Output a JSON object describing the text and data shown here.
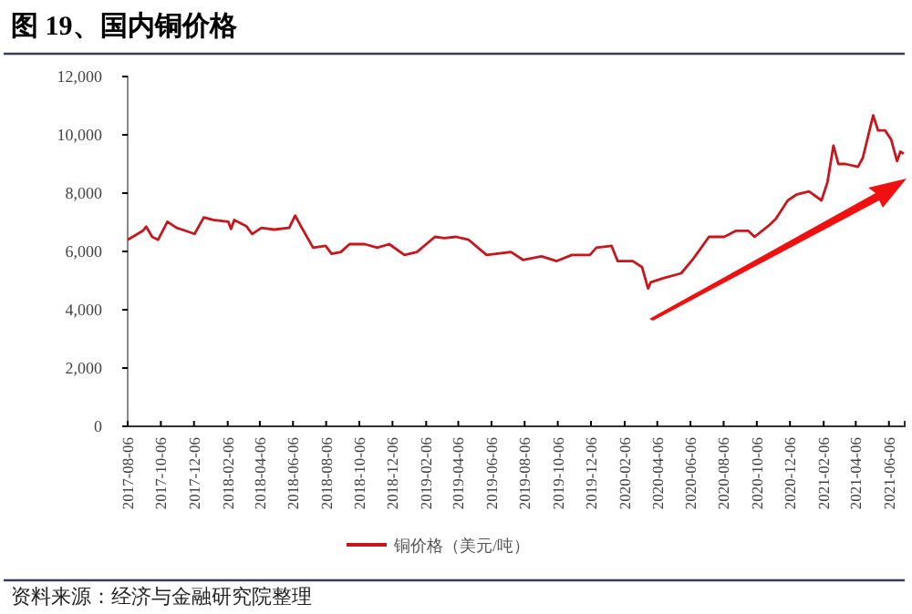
{
  "chart_data": {
    "type": "line",
    "title": "图 19、国内铜价格",
    "annotations": [
      "资料来源：经济与金融研究院整理"
    ],
    "legend": "bottom",
    "grid": false,
    "series": [
      {
        "name": "铜价格（美元/吨）",
        "color": "#c8161d",
        "x": [
          "2017-08-06",
          "2017-09-03",
          "2017-09-09",
          "2017-09-20",
          "2017-10-01",
          "2017-10-18",
          "2017-11-04",
          "2017-11-20",
          "2017-12-07",
          "2017-12-24",
          "2018-01-10",
          "2018-02-07",
          "2018-02-12",
          "2018-02-18",
          "2018-03-12",
          "2018-03-23",
          "2018-04-09",
          "2018-05-02",
          "2018-05-30",
          "2018-06-10",
          "2018-06-21",
          "2018-07-13",
          "2018-08-05",
          "2018-08-16",
          "2018-09-02",
          "2018-09-18",
          "2018-10-16",
          "2018-11-08",
          "2018-11-30",
          "2018-12-28",
          "2019-01-20",
          "2019-02-22",
          "2019-03-11",
          "2019-04-02",
          "2019-04-25",
          "2019-05-28",
          "2019-07-12",
          "2019-08-03",
          "2019-09-06",
          "2019-10-04",
          "2019-11-01",
          "2019-12-04",
          "2019-12-16",
          "2020-01-13",
          "2020-01-24",
          "2020-02-21",
          "2020-03-09",
          "2020-03-20",
          "2020-03-25",
          "2020-04-17",
          "2020-05-20",
          "2020-06-12",
          "2020-07-10",
          "2020-08-07",
          "2020-08-29",
          "2020-09-20",
          "2020-10-02",
          "2020-10-30",
          "2020-11-10",
          "2020-12-02",
          "2020-12-19",
          "2021-01-10",
          "2021-02-02",
          "2021-02-13",
          "2021-02-24",
          "2021-03-05",
          "2021-03-18",
          "2021-04-10",
          "2021-04-19",
          "2021-05-08",
          "2021-05-17",
          "2021-05-30",
          "2021-06-10",
          "2021-06-21",
          "2021-06-27",
          "2021-07-03"
        ],
        "values": [
          6400,
          6710,
          6850,
          6500,
          6400,
          7020,
          6810,
          6710,
          6600,
          7170,
          7080,
          7020,
          6770,
          7080,
          6870,
          6600,
          6810,
          6750,
          6810,
          7230,
          6850,
          6130,
          6190,
          5920,
          5980,
          6250,
          6250,
          6130,
          6250,
          5880,
          5980,
          6500,
          6460,
          6500,
          6400,
          5880,
          5980,
          5710,
          5830,
          5670,
          5880,
          5880,
          6130,
          6190,
          5670,
          5670,
          5460,
          4730,
          4940,
          5080,
          5250,
          5770,
          6500,
          6500,
          6710,
          6710,
          6500,
          6920,
          7120,
          7750,
          7960,
          8060,
          7750,
          8380,
          9630,
          9000,
          9000,
          8900,
          9210,
          10670,
          10150,
          10150,
          9840,
          9100,
          9420,
          9350
        ]
      }
    ],
    "xlim": [
      "2017-08-06",
      "2021-07-05"
    ],
    "xticks": [
      "2017-08-06",
      "2017-10-06",
      "2017-12-06",
      "2018-02-06",
      "2018-04-06",
      "2018-06-06",
      "2018-08-06",
      "2018-10-06",
      "2018-12-06",
      "2019-02-06",
      "2019-04-06",
      "2019-06-06",
      "2019-08-06",
      "2019-10-06",
      "2019-12-06",
      "2020-02-06",
      "2020-04-06",
      "2020-06-06",
      "2020-08-06",
      "2020-10-06",
      "2020-12-06",
      "2021-02-06",
      "2021-04-06",
      "2021-06-06"
    ],
    "ylim": [
      0,
      12000
    ],
    "yticks": [
      {
        "value": 0,
        "label": "0"
      },
      {
        "value": 2000,
        "label": "2,000"
      },
      {
        "value": 4000,
        "label": "4,000"
      },
      {
        "value": 6000,
        "label": "6,000"
      },
      {
        "value": 8000,
        "label": "8,000"
      },
      {
        "value": 10000,
        "label": "10,000"
      },
      {
        "value": 12000,
        "label": "12,000"
      }
    ]
  }
}
